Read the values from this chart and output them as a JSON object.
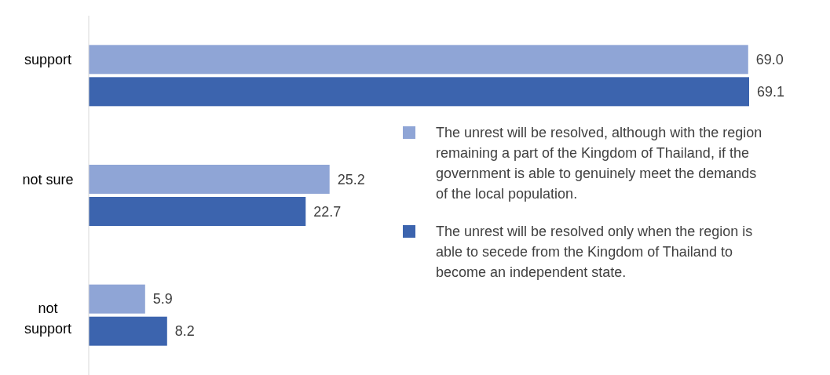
{
  "chart_data": {
    "type": "bar",
    "orientation": "horizontal",
    "categories": [
      "support",
      "not sure",
      "not support"
    ],
    "series": [
      {
        "name": "The unrest will be resolved, although with the region remaining a part of the Kingdom of Thailand, if the government is able to genuinely meet the demands of the local population.",
        "color": "#8fa5d6",
        "values": [
          69.0,
          25.2,
          5.9
        ],
        "value_labels": [
          "69.0",
          "25.2",
          "5.9"
        ]
      },
      {
        "name": "The unrest will be resolved only when the region is able to secede from the Kingdom of Thailand to become an independent state.",
        "color": "#3c64ae",
        "values": [
          69.1,
          22.7,
          8.2
        ],
        "value_labels": [
          "69.1",
          "22.7",
          "8.2"
        ]
      }
    ],
    "legend": "right"
  }
}
